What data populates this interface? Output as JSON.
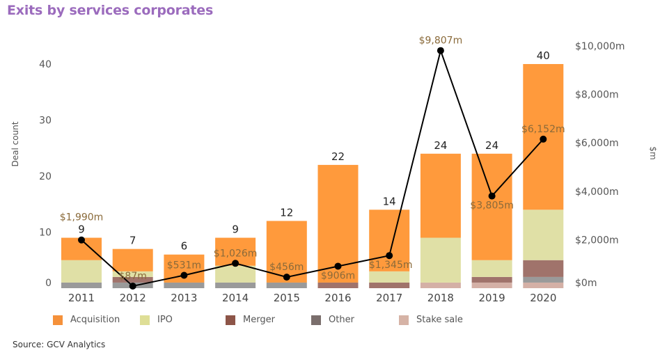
{
  "title": "Exits by services corporates",
  "source": "Source: GCV Analytics",
  "chart_data": {
    "type": "bar",
    "stacked": true,
    "title": "Exits by services corporates",
    "xlabel": "",
    "ylabel": "Deal count",
    "y2label": "$m",
    "categories": [
      "2011",
      "2012",
      "2013",
      "2014",
      "2015",
      "2016",
      "2017",
      "2018",
      "2019",
      "2020"
    ],
    "series": [
      {
        "name": "Stake sale",
        "color": "#d4b0a6",
        "values": [
          0,
          0,
          0,
          0,
          0,
          0,
          0,
          1,
          1,
          1
        ]
      },
      {
        "name": "Other",
        "color": "#9a9a9a",
        "values": [
          1,
          1,
          1,
          1,
          1,
          0,
          0,
          0,
          0,
          1
        ]
      },
      {
        "name": "Merger",
        "color": "#a0736b",
        "values": [
          0,
          1,
          0,
          0,
          0,
          1,
          1,
          0,
          1,
          3
        ]
      },
      {
        "name": "IPO",
        "color": "#e0e0a6",
        "values": [
          4,
          1,
          0,
          3,
          0,
          0,
          2,
          8,
          3,
          9
        ]
      },
      {
        "name": "Acquisition",
        "color": "#ff9a3c",
        "values": [
          4,
          4,
          5,
          5,
          11,
          21,
          11,
          15,
          19,
          26
        ]
      }
    ],
    "totals": [
      9,
      7,
      6,
      9,
      12,
      22,
      14,
      24,
      24,
      40
    ],
    "line_series": {
      "name": "Value ($m)",
      "axis": "right",
      "color": "#000000",
      "values": [
        1990,
        87,
        531,
        1026,
        456,
        906,
        1345,
        9807,
        3805,
        6152
      ],
      "labels": [
        "$1,990m",
        "$87m",
        "$531m",
        "$1,026m",
        "$456m",
        "$906m",
        "$1,345m",
        "$9,807m",
        "$3,805m",
        "$6,152m"
      ],
      "label_position": [
        "above",
        "above",
        "above",
        "above",
        "above",
        "below",
        "below",
        "above",
        "below",
        "above"
      ]
    },
    "ylim": [
      0,
      40
    ],
    "yticks": [
      0,
      10,
      20,
      30,
      40
    ],
    "y2lim": [
      0,
      10000
    ],
    "y2ticks": [
      0,
      2000,
      4000,
      6000,
      8000,
      10000
    ],
    "y2tick_labels": [
      "$0m",
      "$2,000m",
      "$4,000m",
      "$6,000m",
      "$8,000m",
      "$10,000m"
    ],
    "grid": false,
    "legend": {
      "position": "bottom-left",
      "order": [
        "Acquisition",
        "IPO",
        "Merger",
        "Other",
        "Stake sale"
      ],
      "colors": [
        "#f5913a",
        "#dede96",
        "#8d5548",
        "#7a6e6c",
        "#d6b3a6"
      ]
    }
  }
}
